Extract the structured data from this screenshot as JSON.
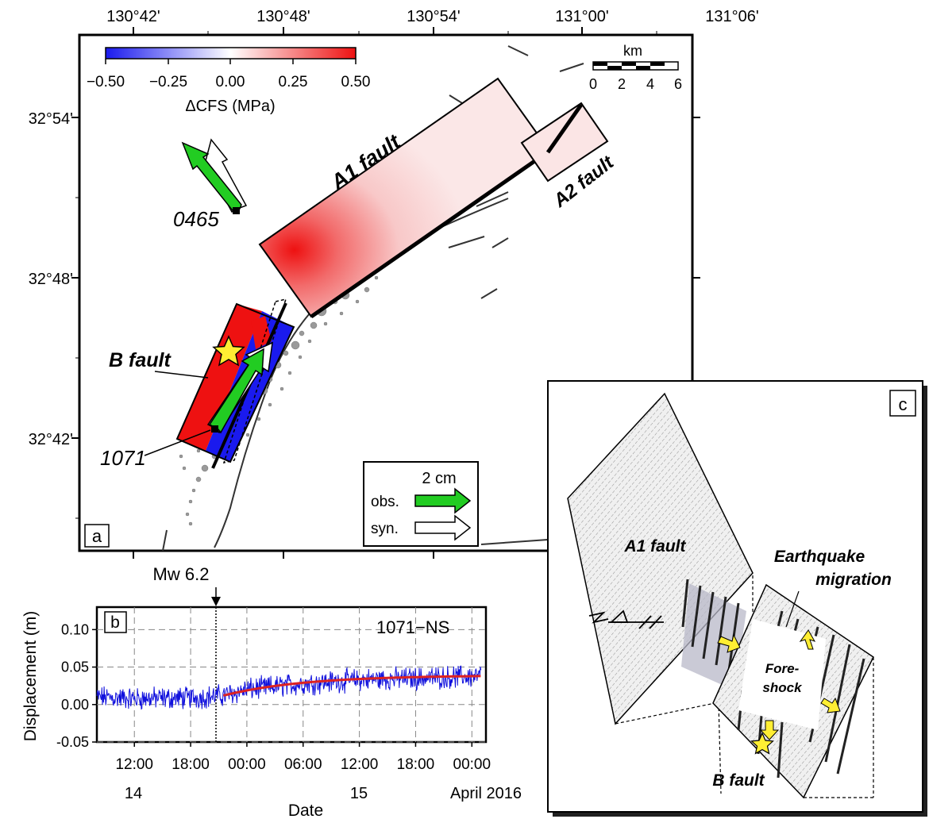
{
  "panel_a": {
    "label": "a",
    "lon_ticks": [
      "130°42'",
      "130°48'",
      "130°54'",
      "131°00'",
      "131°06'"
    ],
    "lat_ticks": [
      "32°54'",
      "32°48'",
      "32°42'"
    ],
    "colorbar": {
      "title": "ΔCFS (MPa)",
      "ticks": [
        "−0.50",
        "−0.25",
        "0.00",
        "0.25",
        "0.50"
      ],
      "colors": {
        "min": "#1a1aee",
        "mid": "#ffffff",
        "max": "#ee1111"
      }
    },
    "scalebar": {
      "unit": "km",
      "ticks": [
        "0",
        "2",
        "4",
        "6"
      ]
    },
    "faults": {
      "a1": "A1 fault",
      "a2": "A2 fault",
      "b": "B fault"
    },
    "stations": {
      "s0465": "0465",
      "s1071": "1071"
    },
    "legend": {
      "scale": "2 cm",
      "obs": "obs.",
      "syn": "syn.",
      "obs_color": "#22cc22",
      "syn_color": "#ffffff"
    }
  },
  "panel_b": {
    "label": "b",
    "event_label": "Mw 6.2",
    "station_label": "1071−NS",
    "ylabel": "Displacement (m)",
    "xlabel": "Date",
    "date_labels": [
      "14",
      "15",
      "April 2016"
    ]
  },
  "panel_c": {
    "label": "c",
    "a1": "A1 fault",
    "b": "B fault",
    "migration": [
      "Earthquake",
      "migration"
    ],
    "foreshock": [
      "Fore-",
      "shock"
    ]
  },
  "chart_data": {
    "type": "line",
    "ylabel": "Displacement (m)",
    "xlabel": "Date",
    "ylim": [
      -0.05,
      0.13
    ],
    "yticks": [
      "0.10",
      "0.05",
      "0.00",
      "-0.05"
    ],
    "xticks": [
      "12:00",
      "18:00",
      "00:00",
      "06:00",
      "12:00",
      "18:00",
      "00:00"
    ],
    "grid": true,
    "event_time": "2016-04-14 21:26",
    "series": [
      {
        "color": "#1010dd",
        "points": [
          [
            "2016-04-14 08:00",
            0.01
          ],
          [
            "2016-04-14 12:00",
            0.008
          ],
          [
            "2016-04-14 18:00",
            0.009
          ],
          [
            "2016-04-14 21:30",
            0.012
          ],
          [
            "2016-04-15 00:00",
            0.02
          ],
          [
            "2016-04-15 06:00",
            0.028
          ],
          [
            "2016-04-15 12:00",
            0.033
          ],
          [
            "2016-04-15 18:00",
            0.035
          ],
          [
            "2016-04-16 01:00",
            0.038
          ]
        ]
      },
      {
        "color": "#dd2222",
        "points": [
          [
            "2016-04-14 21:30",
            0.012
          ],
          [
            "2016-04-15 00:00",
            0.018
          ],
          [
            "2016-04-15 06:00",
            0.026
          ],
          [
            "2016-04-15 12:00",
            0.031
          ],
          [
            "2016-04-15 18:00",
            0.035
          ],
          [
            "2016-04-16 01:00",
            0.038
          ]
        ]
      }
    ]
  }
}
